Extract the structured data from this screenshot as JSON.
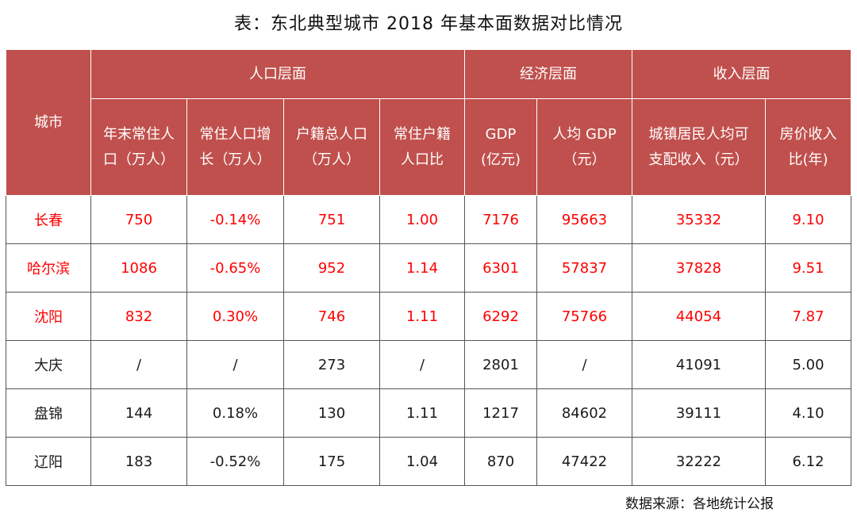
{
  "title": "表：东北典型城市 2018 年基本面数据对比情况",
  "header": {
    "city": "城市",
    "groups": [
      "人口层面",
      "经济层面",
      "收入层面"
    ],
    "columns": [
      [
        "年末常住人",
        "口（万人）"
      ],
      [
        "常住人口增",
        "长（万人）"
      ],
      [
        "户籍总人口",
        "（万人）"
      ],
      [
        "常住户籍",
        "人口比"
      ],
      [
        "GDP",
        "(亿元)"
      ],
      [
        "人均 GDP",
        "（元）"
      ],
      [
        "城镇居民人均可",
        "支配收入（元）"
      ],
      [
        "房价收入",
        "比(年)"
      ]
    ]
  },
  "rows": [
    [
      "长春",
      "750",
      "-0.14%",
      "751",
      "1.00",
      "7176",
      "95663",
      "35332",
      "9.10"
    ],
    [
      "哈尔滨",
      "1086",
      "-0.65%",
      "952",
      "1.14",
      "6301",
      "57837",
      "37828",
      "9.51"
    ],
    [
      "沈阳",
      "832",
      "0.30%",
      "746",
      "1.11",
      "6292",
      "75766",
      "44054",
      "7.87"
    ],
    [
      "大庆",
      "/",
      "/",
      "273",
      "/",
      "2801",
      "/",
      "41091",
      "5.00"
    ],
    [
      "盘锦",
      "144",
      "0.18%",
      "130",
      "1.11",
      "1217",
      "84602",
      "39111",
      "4.10"
    ],
    [
      "辽阳",
      "183",
      "-0.52%",
      "175",
      "1.04",
      "870",
      "47422",
      "32222",
      "6.12"
    ]
  ],
  "highlight_color": "#ff0000",
  "header_color": "#c0504d",
  "source": "数据来源：各地统计公报"
}
